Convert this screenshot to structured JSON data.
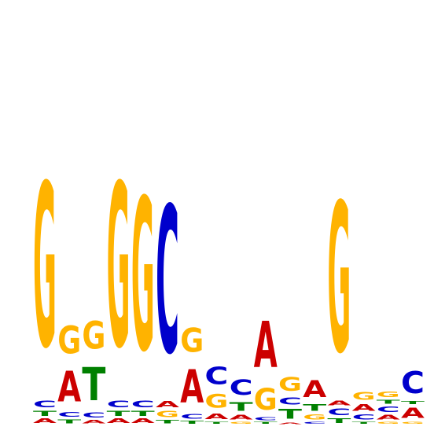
{
  "colors": {
    "A": "#cc0000",
    "C": "#0000cc",
    "G": "#ffb300",
    "T": "#008000"
  },
  "positions": [
    [
      {
        "base": "A",
        "bits": 0.08
      },
      {
        "base": "T",
        "bits": 0.09
      },
      {
        "base": "C",
        "bits": 0.12
      },
      {
        "base": "G",
        "bits": 2.95
      }
    ],
    [
      {
        "base": "T",
        "bits": 0.07
      },
      {
        "base": "C",
        "bits": 0.08
      },
      {
        "base": "A",
        "bits": 0.55
      },
      {
        "base": "G",
        "bits": 0.5
      }
    ],
    [
      {
        "base": "A",
        "bits": 0.06
      },
      {
        "base": "C",
        "bits": 0.09
      },
      {
        "base": "T",
        "bits": 0.6
      },
      {
        "base": "G",
        "bits": 0.5
      }
    ],
    [
      {
        "base": "A",
        "bits": 0.08
      },
      {
        "base": "T",
        "bits": 0.09
      },
      {
        "base": "C",
        "bits": 0.12
      },
      {
        "base": "G",
        "bits": 2.95
      }
    ],
    [
      {
        "base": "A",
        "bits": 0.08
      },
      {
        "base": "T",
        "bits": 0.09
      },
      {
        "base": "C",
        "bits": 0.12
      },
      {
        "base": "G",
        "bits": 2.75
      }
    ],
    [
      {
        "base": "T",
        "bits": 0.06
      },
      {
        "base": "G",
        "bits": 0.11
      },
      {
        "base": "A",
        "bits": 0.11
      },
      {
        "base": "C",
        "bits": 2.65
      }
    ],
    [
      {
        "base": "T",
        "bits": 0.05
      },
      {
        "base": "C",
        "bits": 0.08
      },
      {
        "base": "A",
        "bits": 0.6
      },
      {
        "base": "G",
        "bits": 0.43
      }
    ],
    [
      {
        "base": "T",
        "bits": 0.04
      },
      {
        "base": "A",
        "bits": 0.1
      },
      {
        "base": "G",
        "bits": 0.25
      },
      {
        "base": "C",
        "bits": 0.31
      }
    ],
    [
      {
        "base": "G",
        "bits": 0.04
      },
      {
        "base": "A",
        "bits": 0.08
      },
      {
        "base": "T",
        "bits": 0.16
      },
      {
        "base": "C",
        "bits": 0.28
      }
    ],
    [
      {
        "base": "T",
        "bits": 0.04
      },
      {
        "base": "C",
        "bits": 0.05
      },
      {
        "base": "G",
        "bits": 0.39
      },
      {
        "base": "A",
        "bits": 0.83
      }
    ],
    [
      {
        "base": "A",
        "bits": 0.03
      },
      {
        "base": "T",
        "bits": 0.17
      },
      {
        "base": "C",
        "bits": 0.13
      },
      {
        "base": "G",
        "bits": 0.25
      }
    ],
    [
      {
        "base": "C",
        "bits": 0.04
      },
      {
        "base": "G",
        "bits": 0.09
      },
      {
        "base": "T",
        "bits": 0.12
      },
      {
        "base": "A",
        "bits": 0.3
      }
    ],
    [
      {
        "base": "T",
        "bits": 0.08
      },
      {
        "base": "C",
        "bits": 0.12
      },
      {
        "base": "A",
        "bits": 0.08
      },
      {
        "base": "G",
        "bits": 2.7
      }
    ],
    [
      {
        "base": "T",
        "bits": 0.04
      },
      {
        "base": "C",
        "bits": 0.09
      },
      {
        "base": "A",
        "bits": 0.12
      },
      {
        "base": "G",
        "bits": 0.14
      }
    ],
    [
      {
        "base": "G",
        "bits": 0.04
      },
      {
        "base": "A",
        "bits": 0.08
      },
      {
        "base": "C",
        "bits": 0.1
      },
      {
        "base": "T",
        "bits": 0.07
      },
      {
        "base": "G",
        "bits": 0.1
      }
    ],
    [
      {
        "base": "G",
        "bits": 0.04
      },
      {
        "base": "A",
        "bits": 0.18
      },
      {
        "base": "T",
        "bits": 0.05
      },
      {
        "base": "C",
        "bits": 0.4
      }
    ]
  ]
}
